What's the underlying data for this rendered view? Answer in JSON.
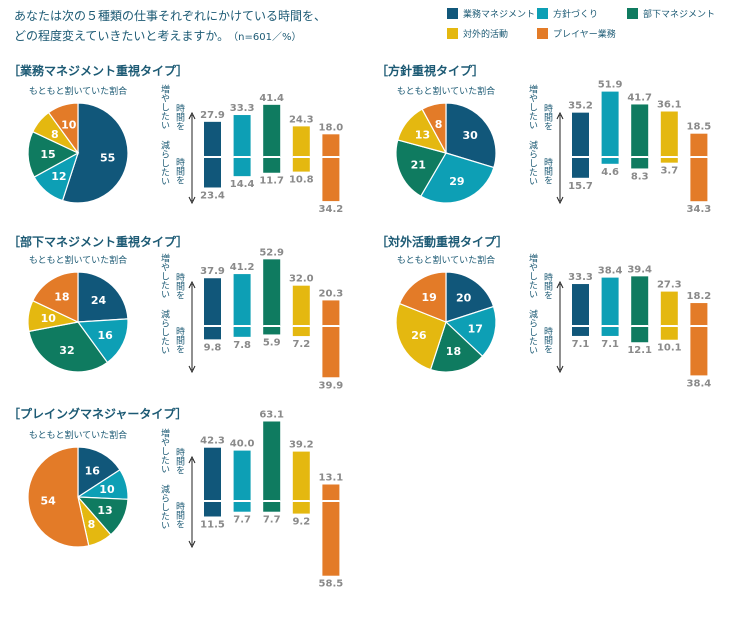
{
  "question": "あなたは次の５種類の仕事それぞれにかけている時間を、",
  "question2": "どの程度変えていきたいと考えますか。",
  "note": "（n=601／%）",
  "labels": {
    "pie_caption": "もともと割いていた割合",
    "increase": "増やしたい",
    "decrease": "減らしたい",
    "time_wo": "時間を"
  },
  "legend": [
    {
      "name": "業務マネジメント",
      "color": "#11577a"
    },
    {
      "name": "方針づくり",
      "color": "#0d9fb5"
    },
    {
      "name": "部下マネジメント",
      "color": "#0f7b60"
    },
    {
      "name": "対外的活動",
      "color": "#e4b810"
    },
    {
      "name": "プレイヤー業務",
      "color": "#e37b28"
    }
  ],
  "chart_data": [
    {
      "type": "pie",
      "title": "［業務マネジメント重視タイプ］",
      "pie": [
        55,
        12,
        15,
        8,
        10
      ],
      "series": [
        {
          "name": "増やしたい",
          "values": [
            27.9,
            33.3,
            41.4,
            24.3,
            18.0
          ]
        },
        {
          "name": "減らしたい",
          "values": [
            23.4,
            14.4,
            11.7,
            10.8,
            34.2
          ]
        }
      ]
    },
    {
      "type": "pie",
      "title": "［方針重視タイプ］",
      "pie": [
        30,
        29,
        21,
        13,
        8
      ],
      "series": [
        {
          "name": "増やしたい",
          "values": [
            35.2,
            51.9,
            41.7,
            36.1,
            18.5
          ]
        },
        {
          "name": "減らしたい",
          "values": [
            15.7,
            4.6,
            8.3,
            3.7,
            34.3
          ]
        }
      ]
    },
    {
      "type": "pie",
      "title": "［部下マネジメント重視タイプ］",
      "pie": [
        24,
        16,
        32,
        10,
        18
      ],
      "series": [
        {
          "name": "増やしたい",
          "values": [
            37.9,
            41.2,
            52.9,
            32.0,
            20.3
          ]
        },
        {
          "name": "減らしたい",
          "values": [
            9.8,
            7.8,
            5.9,
            7.2,
            39.9
          ]
        }
      ]
    },
    {
      "type": "pie",
      "title": "［対外活動重視タイプ］",
      "pie": [
        20,
        17,
        18,
        26,
        19
      ],
      "series": [
        {
          "name": "増やしたい",
          "values": [
            33.3,
            38.4,
            39.4,
            27.3,
            18.2
          ]
        },
        {
          "name": "減らしたい",
          "values": [
            7.1,
            7.1,
            12.1,
            10.1,
            38.4
          ]
        }
      ]
    },
    {
      "type": "pie",
      "title": "［プレイングマネジャータイプ］",
      "pie": [
        16,
        10,
        13,
        8,
        54
      ],
      "series": [
        {
          "name": "増やしたい",
          "values": [
            42.3,
            40.0,
            63.1,
            39.2,
            13.1
          ]
        },
        {
          "name": "減らしたい",
          "values": [
            11.5,
            7.7,
            7.7,
            9.2,
            58.5
          ]
        }
      ]
    }
  ]
}
